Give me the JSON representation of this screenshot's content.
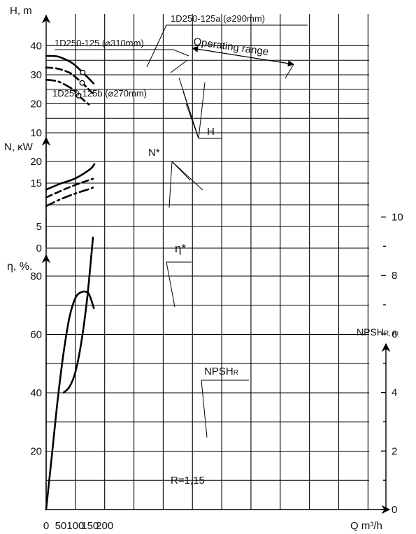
{
  "chart_data": {
    "type": "line",
    "xlabel": "Q m³/h",
    "x_ticks": [
      "0",
      "50",
      "100",
      "150",
      "200"
    ],
    "xlim": [
      0,
      200
    ],
    "grid": true,
    "panels": [
      {
        "id": "head",
        "ylabel": "H, m",
        "ylim": [
          10,
          45
        ],
        "y_ticks": [
          "10",
          "20",
          "30",
          "40"
        ],
        "series": [
          {
            "name": "1D250-125 (⌀310mm)",
            "style": "solid",
            "x": [
              0,
              40,
              80,
              100,
              125,
              150,
              162
            ],
            "y": [
              36.5,
              36.3,
              34.6,
              33.2,
              30.8,
              28.3,
              27.0
            ]
          },
          {
            "name": "1D250-125a (⌀290mm)",
            "style": "dashed",
            "x": [
              0,
              40,
              80,
              100,
              123,
              150,
              162
            ],
            "y": [
              32.5,
              32.1,
              30.7,
              29.2,
              27.2,
              24.5,
              23.5
            ]
          },
          {
            "name": "1D250-125b (⌀270mm)",
            "style": "dashdot",
            "x": [
              0,
              40,
              80,
              100,
              111,
              135,
              150
            ],
            "y": [
              28.3,
              27.7,
              25.7,
              24.2,
              22.8,
              20.7,
              19.5
            ]
          }
        ],
        "operating_points": [
          [
            125,
            30.8
          ],
          [
            123,
            27.2
          ],
          [
            111,
            22.8
          ]
        ]
      },
      {
        "id": "power",
        "ylabel": "N, κW",
        "ylim": [
          0,
          22
        ],
        "y_ticks": [
          "0",
          "5",
          "10",
          "15",
          "20"
        ],
        "y_tick_overlaps": [
          "10"
        ],
        "series": [
          {
            "name": "1D250-125 (⌀310mm)",
            "style": "solid",
            "x": [
              0,
              50,
              100,
              150,
              165
            ],
            "y": [
              13.5,
              14.9,
              16.1,
              18.2,
              19.4
            ]
          },
          {
            "name": "1D250-125a (⌀290mm)",
            "style": "dashed",
            "x": [
              0,
              50,
              100,
              160
            ],
            "y": [
              11.7,
              13.2,
              14.6,
              16.0
            ]
          },
          {
            "name": "1D250-125b (⌀270mm)",
            "style": "dashdot",
            "x": [
              0,
              50,
              100,
              150,
              160
            ],
            "y": [
              9.7,
              11.3,
              12.6,
              13.7,
              14.0
            ]
          }
        ]
      },
      {
        "id": "efficiency",
        "ylabel": "η, %.",
        "ylim": [
          0,
          85
        ],
        "y_ticks": [
          "0",
          "20",
          "40",
          "60",
          "80"
        ],
        "y_tick_overlaps": [
          "0"
        ],
        "series": [
          {
            "name": "η*",
            "style": "solid",
            "x": [
              0,
              20,
              40,
              60,
              80,
              100,
              120,
              140,
              150,
              163
            ],
            "y": [
              0,
              19,
              38,
              54,
              66,
              72.5,
              74.5,
              74.5,
              73,
              69
            ]
          },
          {
            "name": "NPSHR",
            "style": "solid",
            "axis": "right",
            "x": [
              60,
              80,
              100,
              120,
              140,
              160
            ],
            "y": [
              4.0,
              4.2,
              4.7,
              5.7,
              7.2,
              9.3
            ]
          }
        ]
      }
    ],
    "right_axis": {
      "label_main": "NPSH",
      "label_sub": "R, m",
      "ylim": [
        0,
        10.5
      ],
      "ticks": [
        "0",
        "2",
        "4",
        "6",
        "8",
        "10"
      ]
    },
    "annotations": {
      "top_label": "1D250-125a (⌀290mm)",
      "left_label": "1D250-125 (⌀310mm)",
      "bottom_label": "1D250-125b (⌀270mm)",
      "operating_range": "Operating range",
      "head_callout": "H",
      "power_callout": "N*",
      "eff_callout": "η*",
      "npsh_callout_main": "NPSH",
      "npsh_callout_sub": "R",
      "ratio": "R=1,15"
    }
  }
}
